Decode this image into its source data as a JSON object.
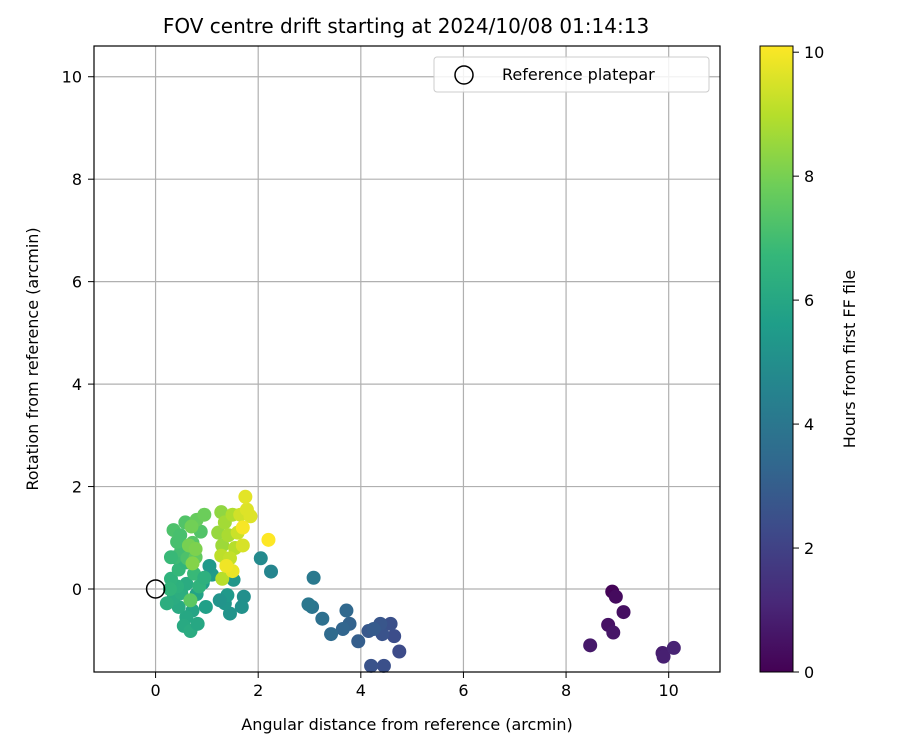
{
  "chart_data": {
    "type": "scatter",
    "title": "FOV centre drift starting at 2024/10/08 01:14:13",
    "xlabel": "Angular distance from reference (arcmin)",
    "ylabel": "Rotation from reference (arcmin)",
    "xlim": [
      -1.2,
      11.0
    ],
    "ylim": [
      -1.62,
      10.6
    ],
    "xticks": [
      0,
      2,
      4,
      6,
      8,
      10
    ],
    "yticks": [
      0,
      2,
      4,
      6,
      8,
      10
    ],
    "grid": true,
    "legend": {
      "position": "upper-right",
      "entries": [
        "Reference platepar"
      ]
    },
    "reference_point": {
      "x": 0.0,
      "y": 0.0,
      "label": "Reference platepar"
    },
    "colorbar": {
      "label": "Hours from first FF file",
      "range": [
        0,
        10.1
      ],
      "ticks": [
        0,
        2,
        4,
        6,
        8,
        10
      ],
      "colormap": "viridis"
    },
    "colormap_stops": [
      "#440154",
      "#482878",
      "#3e4989",
      "#31688e",
      "#26828e",
      "#1f9e89",
      "#35b779",
      "#6ece58",
      "#b5de2b",
      "#fde725"
    ],
    "points": [
      {
        "x": 8.9,
        "y": -0.05,
        "c": 0.1
      },
      {
        "x": 8.97,
        "y": -0.15,
        "c": 0.3
      },
      {
        "x": 9.12,
        "y": -0.45,
        "c": 0.4
      },
      {
        "x": 8.82,
        "y": -0.7,
        "c": 0.5
      },
      {
        "x": 8.92,
        "y": -0.85,
        "c": 0.6
      },
      {
        "x": 8.47,
        "y": -1.1,
        "c": 0.7
      },
      {
        "x": 9.88,
        "y": -1.25,
        "c": 0.8
      },
      {
        "x": 9.9,
        "y": -1.32,
        "c": 0.9
      },
      {
        "x": 10.1,
        "y": -1.15,
        "c": 1.0
      },
      {
        "x": 4.75,
        "y": -1.22,
        "c": 2.3
      },
      {
        "x": 4.65,
        "y": -0.92,
        "c": 2.4
      },
      {
        "x": 4.58,
        "y": -0.68,
        "c": 2.5
      },
      {
        "x": 4.42,
        "y": -0.88,
        "c": 2.6
      },
      {
        "x": 4.38,
        "y": -0.68,
        "c": 2.7
      },
      {
        "x": 4.45,
        "y": -1.5,
        "c": 2.5
      },
      {
        "x": 4.2,
        "y": -1.5,
        "c": 2.6
      },
      {
        "x": 4.15,
        "y": -0.82,
        "c": 2.8
      },
      {
        "x": 4.25,
        "y": -0.78,
        "c": 2.9
      },
      {
        "x": 3.95,
        "y": -1.02,
        "c": 3.0
      },
      {
        "x": 3.78,
        "y": -0.68,
        "c": 3.2
      },
      {
        "x": 3.65,
        "y": -0.78,
        "c": 3.3
      },
      {
        "x": 3.72,
        "y": -0.42,
        "c": 3.4
      },
      {
        "x": 3.42,
        "y": -0.88,
        "c": 3.5
      },
      {
        "x": 3.25,
        "y": -0.58,
        "c": 3.7
      },
      {
        "x": 3.05,
        "y": -0.35,
        "c": 3.9
      },
      {
        "x": 2.98,
        "y": -0.3,
        "c": 4.0
      },
      {
        "x": 3.08,
        "y": 0.22,
        "c": 4.1
      },
      {
        "x": 2.25,
        "y": 0.34,
        "c": 4.6
      },
      {
        "x": 2.05,
        "y": 0.6,
        "c": 4.8
      },
      {
        "x": 1.72,
        "y": -0.15,
        "c": 5.0
      },
      {
        "x": 1.68,
        "y": -0.35,
        "c": 5.1
      },
      {
        "x": 1.45,
        "y": -0.48,
        "c": 5.2
      },
      {
        "x": 1.35,
        "y": -0.28,
        "c": 5.3
      },
      {
        "x": 1.4,
        "y": -0.12,
        "c": 5.4
      },
      {
        "x": 1.25,
        "y": -0.22,
        "c": 5.2
      },
      {
        "x": 1.52,
        "y": 0.18,
        "c": 5.3
      },
      {
        "x": 1.1,
        "y": 0.28,
        "c": 5.5
      },
      {
        "x": 1.05,
        "y": 0.45,
        "c": 5.4
      },
      {
        "x": 0.92,
        "y": 0.12,
        "c": 5.6
      },
      {
        "x": 0.98,
        "y": -0.35,
        "c": 5.7
      },
      {
        "x": 0.8,
        "y": -0.1,
        "c": 5.8
      },
      {
        "x": 0.72,
        "y": -0.42,
        "c": 5.9
      },
      {
        "x": 0.6,
        "y": -0.55,
        "c": 6.0
      },
      {
        "x": 0.55,
        "y": -0.72,
        "c": 6.1
      },
      {
        "x": 0.68,
        "y": -0.82,
        "c": 6.2
      },
      {
        "x": 0.82,
        "y": -0.68,
        "c": 6.0
      },
      {
        "x": 0.45,
        "y": -0.35,
        "c": 6.1
      },
      {
        "x": 0.35,
        "y": -0.18,
        "c": 6.2
      },
      {
        "x": 0.5,
        "y": -0.08,
        "c": 6.3
      },
      {
        "x": 0.6,
        "y": 0.1,
        "c": 6.2
      },
      {
        "x": 0.42,
        "y": 0.05,
        "c": 6.4
      },
      {
        "x": 0.3,
        "y": 0.2,
        "c": 6.5
      },
      {
        "x": 0.22,
        "y": -0.28,
        "c": 6.3
      },
      {
        "x": 0.28,
        "y": 0.0,
        "c": 6.6
      },
      {
        "x": 0.45,
        "y": 0.38,
        "c": 6.7
      },
      {
        "x": 0.6,
        "y": 0.52,
        "c": 6.6
      },
      {
        "x": 0.75,
        "y": 0.3,
        "c": 6.8
      },
      {
        "x": 0.85,
        "y": 0.05,
        "c": 6.5
      },
      {
        "x": 0.95,
        "y": 0.22,
        "c": 6.4
      },
      {
        "x": 0.38,
        "y": 0.62,
        "c": 6.9
      },
      {
        "x": 0.5,
        "y": 0.75,
        "c": 7.0
      },
      {
        "x": 0.3,
        "y": 0.62,
        "c": 6.8
      },
      {
        "x": 0.42,
        "y": 0.92,
        "c": 7.1
      },
      {
        "x": 0.35,
        "y": 1.15,
        "c": 7.2
      },
      {
        "x": 0.58,
        "y": 1.3,
        "c": 7.3
      },
      {
        "x": 0.48,
        "y": 1.05,
        "c": 7.1
      },
      {
        "x": 0.62,
        "y": 0.6,
        "c": 7.2
      },
      {
        "x": 0.72,
        "y": 0.9,
        "c": 7.4
      },
      {
        "x": 0.88,
        "y": 1.12,
        "c": 7.3
      },
      {
        "x": 0.68,
        "y": -0.22,
        "c": 7.5
      },
      {
        "x": 0.78,
        "y": 0.62,
        "c": 7.6
      },
      {
        "x": 0.8,
        "y": 1.35,
        "c": 7.7
      },
      {
        "x": 0.95,
        "y": 1.45,
        "c": 7.8
      },
      {
        "x": 0.7,
        "y": 1.22,
        "c": 7.9
      },
      {
        "x": 0.65,
        "y": 0.85,
        "c": 8.0
      },
      {
        "x": 0.78,
        "y": 0.78,
        "c": 8.1
      },
      {
        "x": 0.72,
        "y": 0.5,
        "c": 8.2
      },
      {
        "x": 1.28,
        "y": 1.5,
        "c": 8.4
      },
      {
        "x": 1.22,
        "y": 1.1,
        "c": 8.5
      },
      {
        "x": 1.3,
        "y": 0.85,
        "c": 8.6
      },
      {
        "x": 1.35,
        "y": 1.3,
        "c": 8.7
      },
      {
        "x": 1.42,
        "y": 1.05,
        "c": 8.8
      },
      {
        "x": 1.5,
        "y": 1.45,
        "c": 8.9
      },
      {
        "x": 1.55,
        "y": 0.8,
        "c": 9.0
      },
      {
        "x": 1.28,
        "y": 0.65,
        "c": 9.1
      },
      {
        "x": 1.3,
        "y": 0.2,
        "c": 9.0
      },
      {
        "x": 1.45,
        "y": 0.6,
        "c": 9.2
      },
      {
        "x": 1.6,
        "y": 1.1,
        "c": 9.3
      },
      {
        "x": 1.65,
        "y": 1.45,
        "c": 9.4
      },
      {
        "x": 1.7,
        "y": 0.85,
        "c": 9.5
      },
      {
        "x": 1.78,
        "y": 1.55,
        "c": 9.6
      },
      {
        "x": 1.75,
        "y": 1.8,
        "c": 9.7
      },
      {
        "x": 1.85,
        "y": 1.42,
        "c": 9.6
      },
      {
        "x": 1.5,
        "y": 0.35,
        "c": 9.8
      },
      {
        "x": 1.38,
        "y": 0.45,
        "c": 9.9
      },
      {
        "x": 1.7,
        "y": 1.2,
        "c": 10.0
      },
      {
        "x": 2.2,
        "y": 0.96,
        "c": 10.1
      }
    ]
  }
}
